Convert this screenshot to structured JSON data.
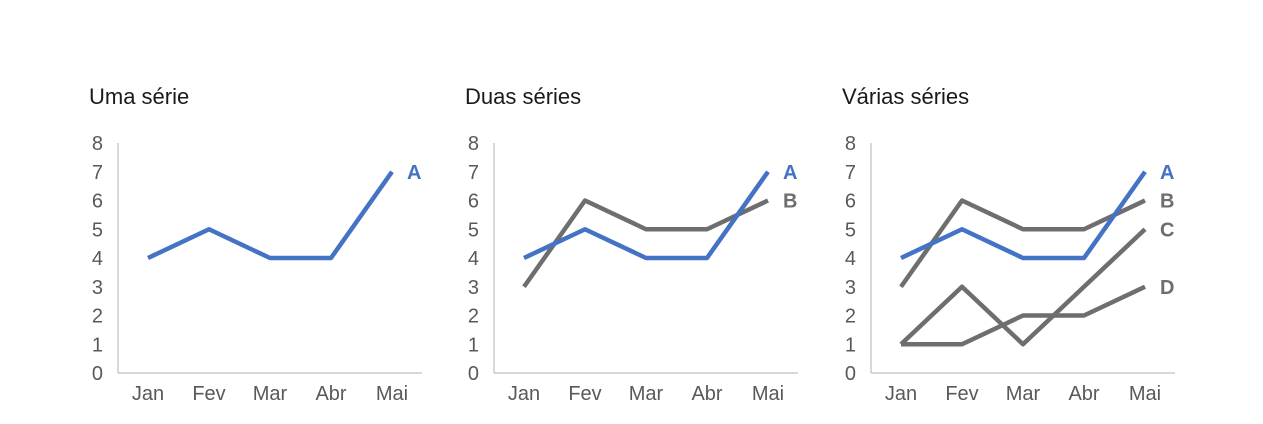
{
  "chart_data": [
    {
      "type": "line",
      "title": "Uma série",
      "categories": [
        "Jan",
        "Fev",
        "Mar",
        "Abr",
        "Mai"
      ],
      "ylim": [
        0,
        8
      ],
      "yticks": [
        "0",
        "1",
        "2",
        "3",
        "4",
        "5",
        "6",
        "7",
        "8"
      ],
      "grid": false,
      "series": [
        {
          "name": "A",
          "values": [
            4,
            5,
            4,
            4,
            7
          ],
          "color": "#4472C4"
        }
      ]
    },
    {
      "type": "line",
      "title": "Duas séries",
      "categories": [
        "Jan",
        "Fev",
        "Mar",
        "Abr",
        "Mai"
      ],
      "ylim": [
        0,
        8
      ],
      "yticks": [
        "0",
        "1",
        "2",
        "3",
        "4",
        "5",
        "6",
        "7",
        "8"
      ],
      "grid": false,
      "series": [
        {
          "name": "B",
          "values": [
            3,
            6,
            5,
            5,
            6
          ],
          "color": "#6E6E6E"
        },
        {
          "name": "A",
          "values": [
            4,
            5,
            4,
            4,
            7
          ],
          "color": "#4472C4"
        }
      ]
    },
    {
      "type": "line",
      "title": "Várias séries",
      "categories": [
        "Jan",
        "Fev",
        "Mar",
        "Abr",
        "Mai"
      ],
      "ylim": [
        0,
        8
      ],
      "yticks": [
        "0",
        "1",
        "2",
        "3",
        "4",
        "5",
        "6",
        "7",
        "8"
      ],
      "grid": false,
      "series": [
        {
          "name": "B",
          "values": [
            3,
            6,
            5,
            5,
            6
          ],
          "color": "#6E6E6E"
        },
        {
          "name": "C",
          "values": [
            1,
            3,
            1,
            3,
            5
          ],
          "color": "#6E6E6E"
        },
        {
          "name": "D",
          "values": [
            1,
            1,
            2,
            2,
            3
          ],
          "color": "#6E6E6E"
        },
        {
          "name": "A",
          "values": [
            4,
            5,
            4,
            4,
            7
          ],
          "color": "#4472C4"
        }
      ]
    }
  ]
}
